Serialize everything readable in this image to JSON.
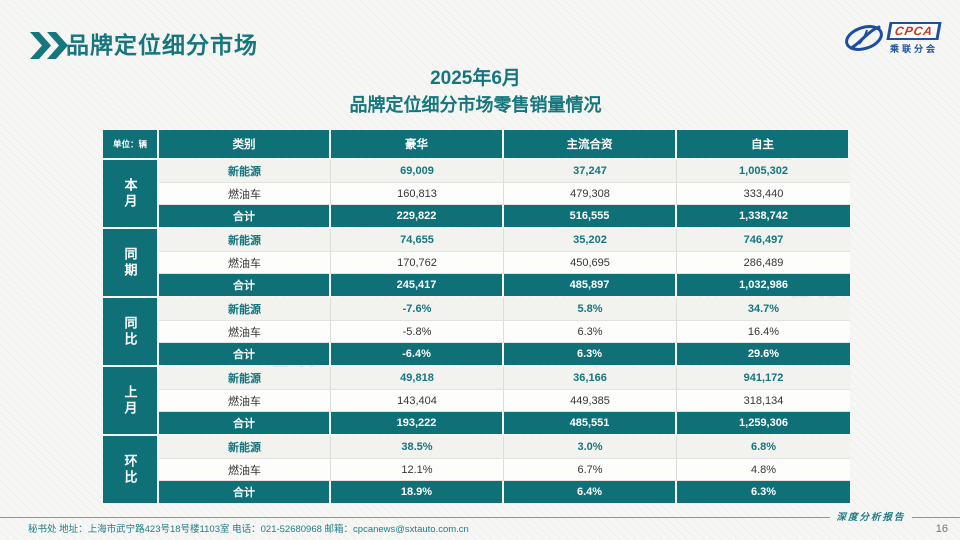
{
  "header": {
    "title": "品牌定位细分市场",
    "subtitle_line1": "2025年6月",
    "subtitle_line2": "品牌定位细分市场零售销量情况"
  },
  "logo": {
    "acronym": "CPCA",
    "subtext": "乘联分会"
  },
  "icons": {
    "header_marker": "double-chevron-right-icon",
    "logo_icon": "cpca-oval-swoosh-icon"
  },
  "colors": {
    "teal": "#0F7078",
    "title_teal": "#15767E",
    "logo_blue": "#1E4EA0",
    "logo_red": "#C9322B",
    "footer_teal": "#1F7E84",
    "row_alt_bg": "#F2F2EF"
  },
  "watermark": {
    "text": "CPCA"
  },
  "table": {
    "unit_label": "单位：辆",
    "columns": [
      "类别",
      "豪华",
      "主流合资",
      "自主"
    ],
    "groups": [
      {
        "label": "本月",
        "rows": [
          {
            "category": "新能源",
            "style": "nev",
            "values": [
              "69,009",
              "37,247",
              "1,005,302"
            ]
          },
          {
            "category": "燃油车",
            "style": "fuel",
            "values": [
              "160,813",
              "479,308",
              "333,440"
            ]
          },
          {
            "category": "合计",
            "style": "total",
            "values": [
              "229,822",
              "516,555",
              "1,338,742"
            ]
          }
        ]
      },
      {
        "label": "同期",
        "rows": [
          {
            "category": "新能源",
            "style": "nev",
            "values": [
              "74,655",
              "35,202",
              "746,497"
            ]
          },
          {
            "category": "燃油车",
            "style": "fuel",
            "values": [
              "170,762",
              "450,695",
              "286,489"
            ]
          },
          {
            "category": "合计",
            "style": "total",
            "values": [
              "245,417",
              "485,897",
              "1,032,986"
            ]
          }
        ]
      },
      {
        "label": "同比",
        "rows": [
          {
            "category": "新能源",
            "style": "nev",
            "values": [
              "-7.6%",
              "5.8%",
              "34.7%"
            ]
          },
          {
            "category": "燃油车",
            "style": "fuel",
            "values": [
              "-5.8%",
              "6.3%",
              "16.4%"
            ]
          },
          {
            "category": "合计",
            "style": "total",
            "values": [
              "-6.4%",
              "6.3%",
              "29.6%"
            ]
          }
        ]
      },
      {
        "label": "上月",
        "rows": [
          {
            "category": "新能源",
            "style": "nev",
            "values": [
              "49,818",
              "36,166",
              "941,172"
            ]
          },
          {
            "category": "燃油车",
            "style": "fuel",
            "values": [
              "143,404",
              "449,385",
              "318,134"
            ]
          },
          {
            "category": "合计",
            "style": "total",
            "values": [
              "193,222",
              "485,551",
              "1,259,306"
            ]
          }
        ]
      },
      {
        "label": "环比",
        "rows": [
          {
            "category": "新能源",
            "style": "nev",
            "values": [
              "38.5%",
              "3.0%",
              "6.8%"
            ]
          },
          {
            "category": "燃油车",
            "style": "fuel",
            "values": [
              "12.1%",
              "6.7%",
              "4.8%"
            ]
          },
          {
            "category": "合计",
            "style": "total",
            "values": [
              "18.9%",
              "6.4%",
              "6.3%"
            ]
          }
        ]
      }
    ]
  },
  "footer": {
    "text": "秘书处  地址：上海市武宁路423号18号楼1103室  电话：021-52680968   邮箱：cpcanews@sxtauto.com.cn",
    "right_label": "深度分析报告",
    "page_number": "16"
  }
}
